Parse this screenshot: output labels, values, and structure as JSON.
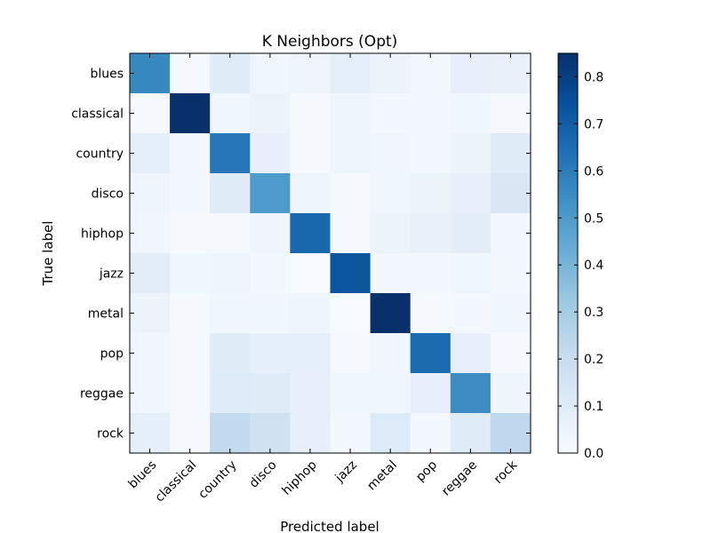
{
  "chart_data": {
    "type": "heatmap",
    "title": "K Neighbors (Opt)",
    "xlabel": "Predicted label",
    "ylabel": "True label",
    "x_categories": [
      "blues",
      "classical",
      "country",
      "disco",
      "hiphop",
      "jazz",
      "metal",
      "pop",
      "reggae",
      "rock"
    ],
    "y_categories": [
      "blues",
      "classical",
      "country",
      "disco",
      "hiphop",
      "jazz",
      "metal",
      "pop",
      "reggae",
      "rock"
    ],
    "values": [
      [
        0.56,
        0.01,
        0.1,
        0.03,
        0.04,
        0.08,
        0.05,
        0.02,
        0.07,
        0.06
      ],
      [
        0.01,
        0.85,
        0.03,
        0.05,
        0.01,
        0.04,
        0.02,
        0.02,
        0.03,
        0.01
      ],
      [
        0.08,
        0.02,
        0.62,
        0.07,
        0.01,
        0.04,
        0.03,
        0.02,
        0.05,
        0.1
      ],
      [
        0.04,
        0.02,
        0.1,
        0.5,
        0.04,
        0.01,
        0.03,
        0.05,
        0.07,
        0.13
      ],
      [
        0.03,
        0.01,
        0.01,
        0.04,
        0.67,
        0.01,
        0.05,
        0.06,
        0.09,
        0.02
      ],
      [
        0.09,
        0.03,
        0.04,
        0.02,
        0.0,
        0.73,
        0.02,
        0.02,
        0.03,
        0.02
      ],
      [
        0.05,
        0.01,
        0.03,
        0.03,
        0.04,
        0.0,
        0.85,
        0.01,
        0.02,
        0.03
      ],
      [
        0.03,
        0.01,
        0.1,
        0.08,
        0.08,
        0.01,
        0.03,
        0.66,
        0.07,
        0.01
      ],
      [
        0.03,
        0.01,
        0.11,
        0.1,
        0.07,
        0.03,
        0.03,
        0.07,
        0.55,
        0.04
      ],
      [
        0.08,
        0.01,
        0.22,
        0.17,
        0.07,
        0.02,
        0.11,
        0.02,
        0.1,
        0.23
      ]
    ],
    "colorbar": {
      "min": 0.0,
      "max": 0.85,
      "ticks": [
        0.0,
        0.1,
        0.2,
        0.3,
        0.4,
        0.5,
        0.6,
        0.7,
        0.8
      ],
      "tick_labels": [
        "0.0",
        "0.1",
        "0.2",
        "0.3",
        "0.4",
        "0.5",
        "0.6",
        "0.7",
        "0.8"
      ],
      "colormap": "Blues"
    },
    "grid": false
  },
  "colors": {
    "colormap_stops": [
      "#f7fbff",
      "#deebf7",
      "#c6dbef",
      "#9ecae1",
      "#6baed6",
      "#4292c6",
      "#2171b5",
      "#08519c",
      "#08306b"
    ],
    "axis": "#000000",
    "background": "#ffffff"
  }
}
